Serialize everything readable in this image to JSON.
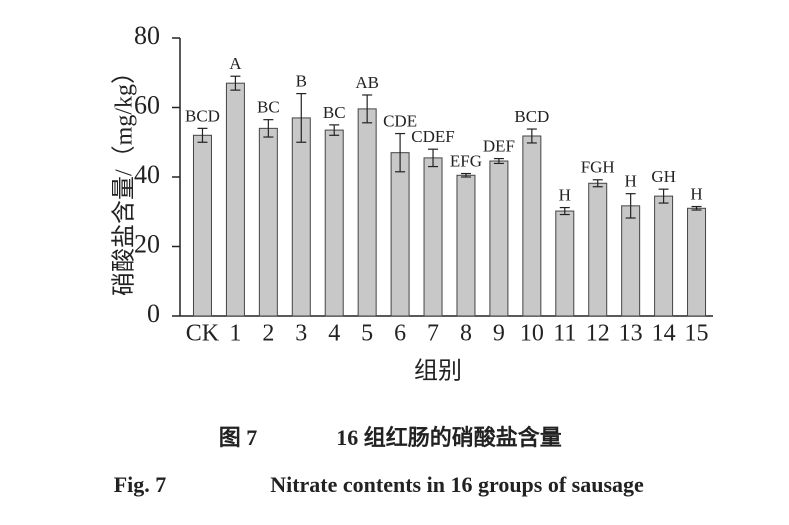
{
  "chart_data": {
    "type": "bar",
    "ylabel": "硝酸盐含量/（mg/kg）",
    "xlabel": "组别",
    "fig_label_cn": "图 7",
    "caption_cn": "16 组红肠的硝酸盐含量",
    "fig_label_en": "Fig. 7",
    "caption_en": "Nitrate contents in 16 groups of sausage",
    "categories": [
      "CK",
      "1",
      "2",
      "3",
      "4",
      "5",
      "6",
      "7",
      "8",
      "9",
      "10",
      "11",
      "12",
      "13",
      "14",
      "15"
    ],
    "values": [
      52,
      67,
      54,
      57,
      53.5,
      59.6,
      47,
      45.5,
      40.5,
      44.6,
      51.8,
      30.2,
      38.2,
      31.7,
      34.5,
      31
    ],
    "errors": [
      2,
      2,
      2.5,
      7,
      1.5,
      4,
      5.5,
      2.5,
      0.5,
      0.7,
      2,
      1,
      1,
      3.5,
      2,
      0.5
    ],
    "letters": [
      "BCD",
      "A",
      "BC",
      "B",
      "BC",
      "AB",
      "CDE",
      "CDEF",
      "EFG",
      "DEF",
      "BCD",
      "H",
      "FGH",
      "H",
      "GH",
      "H"
    ],
    "color": "#c8c8c8",
    "ylim": [
      0,
      80
    ],
    "yticks": [
      0,
      20,
      40,
      60,
      80
    ]
  }
}
